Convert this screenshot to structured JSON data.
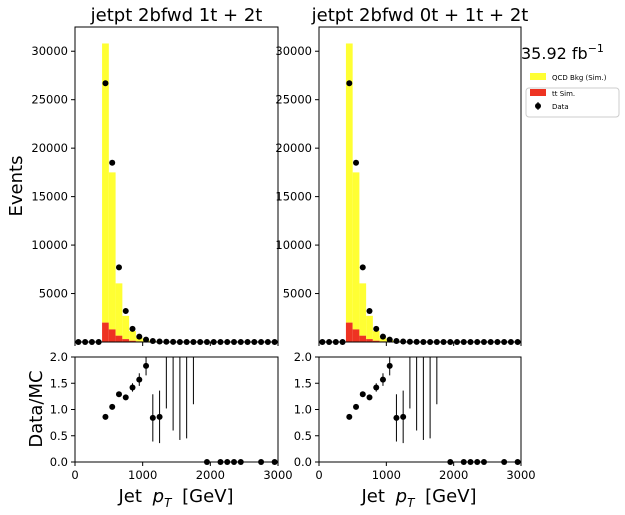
{
  "figure": {
    "lumi_label": "35.92 fb",
    "lumi_sup": "−1",
    "ylabel_main": "Events",
    "ylabel_ratio": "Data/MC",
    "xlabel": "Jet",
    "xlabel_var": "p",
    "xlabel_sub": "T",
    "xlabel_unit": "[GeV]"
  },
  "legend": {
    "placement": "right",
    "entries": [
      {
        "label": "QCD Bkg (Sim.)",
        "color": "#ffff33",
        "kind": "fill"
      },
      {
        "label_prefix": "t",
        "label_mid": "t",
        "label_suffix": " Sim.",
        "color": "#ee3322",
        "kind": "fill"
      },
      {
        "label": "Data",
        "color": "#000000",
        "kind": "marker"
      }
    ]
  },
  "colors": {
    "qcd": "#ffff33",
    "ttbar": "#ee3322",
    "data": "#000000"
  },
  "chart_data": [
    {
      "type": "bar",
      "title": "jetpt  2bfwd 1t + 2t",
      "xlabel": "Jet p_T [GeV]",
      "ylabel": "Events",
      "xlim": [
        0,
        3000
      ],
      "ylim": [
        0,
        32500
      ],
      "yticks": [
        5000,
        10000,
        15000,
        20000,
        25000,
        30000
      ],
      "xticks": [
        0,
        1000,
        2000,
        3000
      ],
      "bin_width": 100,
      "bin_edges_start": 0,
      "series": [
        {
          "name": "QCD Bkg (Sim.)",
          "stacked": true,
          "values": [
            0,
            0,
            0,
            0,
            28800,
            16200,
            5400,
            2400,
            1000,
            400,
            180,
            80,
            40,
            20,
            10,
            5,
            3,
            2,
            1,
            1,
            0,
            0,
            0,
            0,
            0,
            0,
            0,
            0,
            0,
            0
          ]
        },
        {
          "name": "tt Sim.",
          "stacked": true,
          "values": [
            0,
            0,
            0,
            0,
            2000,
            1300,
            650,
            300,
            130,
            60,
            30,
            15,
            8,
            4,
            2,
            1,
            1,
            0,
            0,
            0,
            0,
            0,
            0,
            0,
            0,
            0,
            0,
            0,
            0,
            0
          ]
        },
        {
          "name": "Data",
          "kind": "points",
          "values": [
            0,
            0,
            0,
            0,
            26700,
            18500,
            7700,
            3200,
            1350,
            550,
            240,
            100,
            55,
            25,
            12,
            6,
            3,
            2,
            1,
            1,
            0,
            0,
            0,
            0,
            0,
            0,
            0,
            0,
            0,
            0
          ]
        }
      ],
      "ratio": {
        "ylabel": "Data/MC",
        "ylim": [
          0,
          2.0
        ],
        "yticks": [
          0.0,
          0.5,
          1.0,
          1.5,
          2.0
        ],
        "points": [
          {
            "x": 450,
            "y": 0.86,
            "err": 0.01
          },
          {
            "x": 550,
            "y": 1.05,
            "err": 0.02
          },
          {
            "x": 650,
            "y": 1.29,
            "err": 0.03
          },
          {
            "x": 750,
            "y": 1.23,
            "err": 0.05
          },
          {
            "x": 850,
            "y": 1.42,
            "err": 0.08
          },
          {
            "x": 950,
            "y": 1.57,
            "err": 0.12
          },
          {
            "x": 1050,
            "y": 1.83,
            "err": 0.18
          },
          {
            "x": 1150,
            "y": 0.84,
            "err": 0.45
          },
          {
            "x": 1250,
            "y": 0.86,
            "err": 0.5
          },
          {
            "x": 1950,
            "y": 0.0,
            "err": 0
          },
          {
            "x": 2150,
            "y": 0.0,
            "err": 0
          },
          {
            "x": 2250,
            "y": 0.0,
            "err": 0
          },
          {
            "x": 2350,
            "y": 0.0,
            "err": 0
          },
          {
            "x": 2450,
            "y": 0.0,
            "err": 0
          },
          {
            "x": 2750,
            "y": 0.0,
            "err": 0
          },
          {
            "x": 2950,
            "y": 0.0,
            "err": 0
          }
        ],
        "error_lines": [
          {
            "x": 1350,
            "low": 1.02,
            "high": 2.0
          },
          {
            "x": 1450,
            "low": 0.6,
            "high": 2.0
          },
          {
            "x": 1550,
            "low": 0.42,
            "high": 2.0
          },
          {
            "x": 1650,
            "low": 0.45,
            "high": 2.0
          },
          {
            "x": 1750,
            "low": 1.1,
            "high": 2.0
          }
        ]
      }
    },
    {
      "type": "bar",
      "title": "jetpt  2bfwd 0t + 1t + 2t",
      "xlabel": "Jet p_T [GeV]",
      "ylabel": "Events",
      "xlim": [
        0,
        3000
      ],
      "ylim": [
        0,
        32500
      ],
      "yticks": [
        5000,
        10000,
        15000,
        20000,
        25000,
        30000
      ],
      "xticks": [
        0,
        1000,
        2000,
        3000
      ],
      "bin_width": 100,
      "bin_edges_start": 0,
      "series": [
        {
          "name": "QCD Bkg (Sim.)",
          "stacked": true,
          "values": [
            0,
            0,
            0,
            0,
            28800,
            16200,
            5400,
            2400,
            1000,
            400,
            180,
            80,
            40,
            20,
            10,
            5,
            3,
            2,
            1,
            1,
            0,
            0,
            0,
            0,
            0,
            0,
            0,
            0,
            0,
            0
          ]
        },
        {
          "name": "tt Sim.",
          "stacked": true,
          "values": [
            0,
            0,
            0,
            0,
            2000,
            1300,
            650,
            300,
            130,
            60,
            30,
            15,
            8,
            4,
            2,
            1,
            1,
            0,
            0,
            0,
            0,
            0,
            0,
            0,
            0,
            0,
            0,
            0,
            0,
            0
          ]
        },
        {
          "name": "Data",
          "kind": "points",
          "values": [
            0,
            0,
            0,
            0,
            26700,
            18500,
            7700,
            3200,
            1350,
            550,
            240,
            100,
            55,
            25,
            12,
            6,
            3,
            2,
            1,
            1,
            0,
            0,
            0,
            0,
            0,
            0,
            0,
            0,
            0,
            0
          ]
        }
      ],
      "ratio": {
        "ylabel": "Data/MC",
        "ylim": [
          0,
          2.0
        ],
        "yticks": [
          0.0,
          0.5,
          1.0,
          1.5,
          2.0
        ],
        "points": [
          {
            "x": 450,
            "y": 0.86,
            "err": 0.01
          },
          {
            "x": 550,
            "y": 1.05,
            "err": 0.02
          },
          {
            "x": 650,
            "y": 1.29,
            "err": 0.03
          },
          {
            "x": 750,
            "y": 1.23,
            "err": 0.05
          },
          {
            "x": 850,
            "y": 1.42,
            "err": 0.08
          },
          {
            "x": 950,
            "y": 1.57,
            "err": 0.12
          },
          {
            "x": 1050,
            "y": 1.83,
            "err": 0.18
          },
          {
            "x": 1150,
            "y": 0.84,
            "err": 0.45
          },
          {
            "x": 1250,
            "y": 0.86,
            "err": 0.5
          },
          {
            "x": 1950,
            "y": 0.0,
            "err": 0
          },
          {
            "x": 2150,
            "y": 0.0,
            "err": 0
          },
          {
            "x": 2250,
            "y": 0.0,
            "err": 0
          },
          {
            "x": 2350,
            "y": 0.0,
            "err": 0
          },
          {
            "x": 2450,
            "y": 0.0,
            "err": 0
          },
          {
            "x": 2750,
            "y": 0.0,
            "err": 0
          },
          {
            "x": 2950,
            "y": 0.0,
            "err": 0
          }
        ],
        "error_lines": [
          {
            "x": 1350,
            "low": 1.02,
            "high": 2.0
          },
          {
            "x": 1450,
            "low": 0.6,
            "high": 2.0
          },
          {
            "x": 1550,
            "low": 0.42,
            "high": 2.0
          },
          {
            "x": 1650,
            "low": 0.45,
            "high": 2.0
          },
          {
            "x": 1750,
            "low": 1.1,
            "high": 2.0
          }
        ]
      }
    }
  ]
}
